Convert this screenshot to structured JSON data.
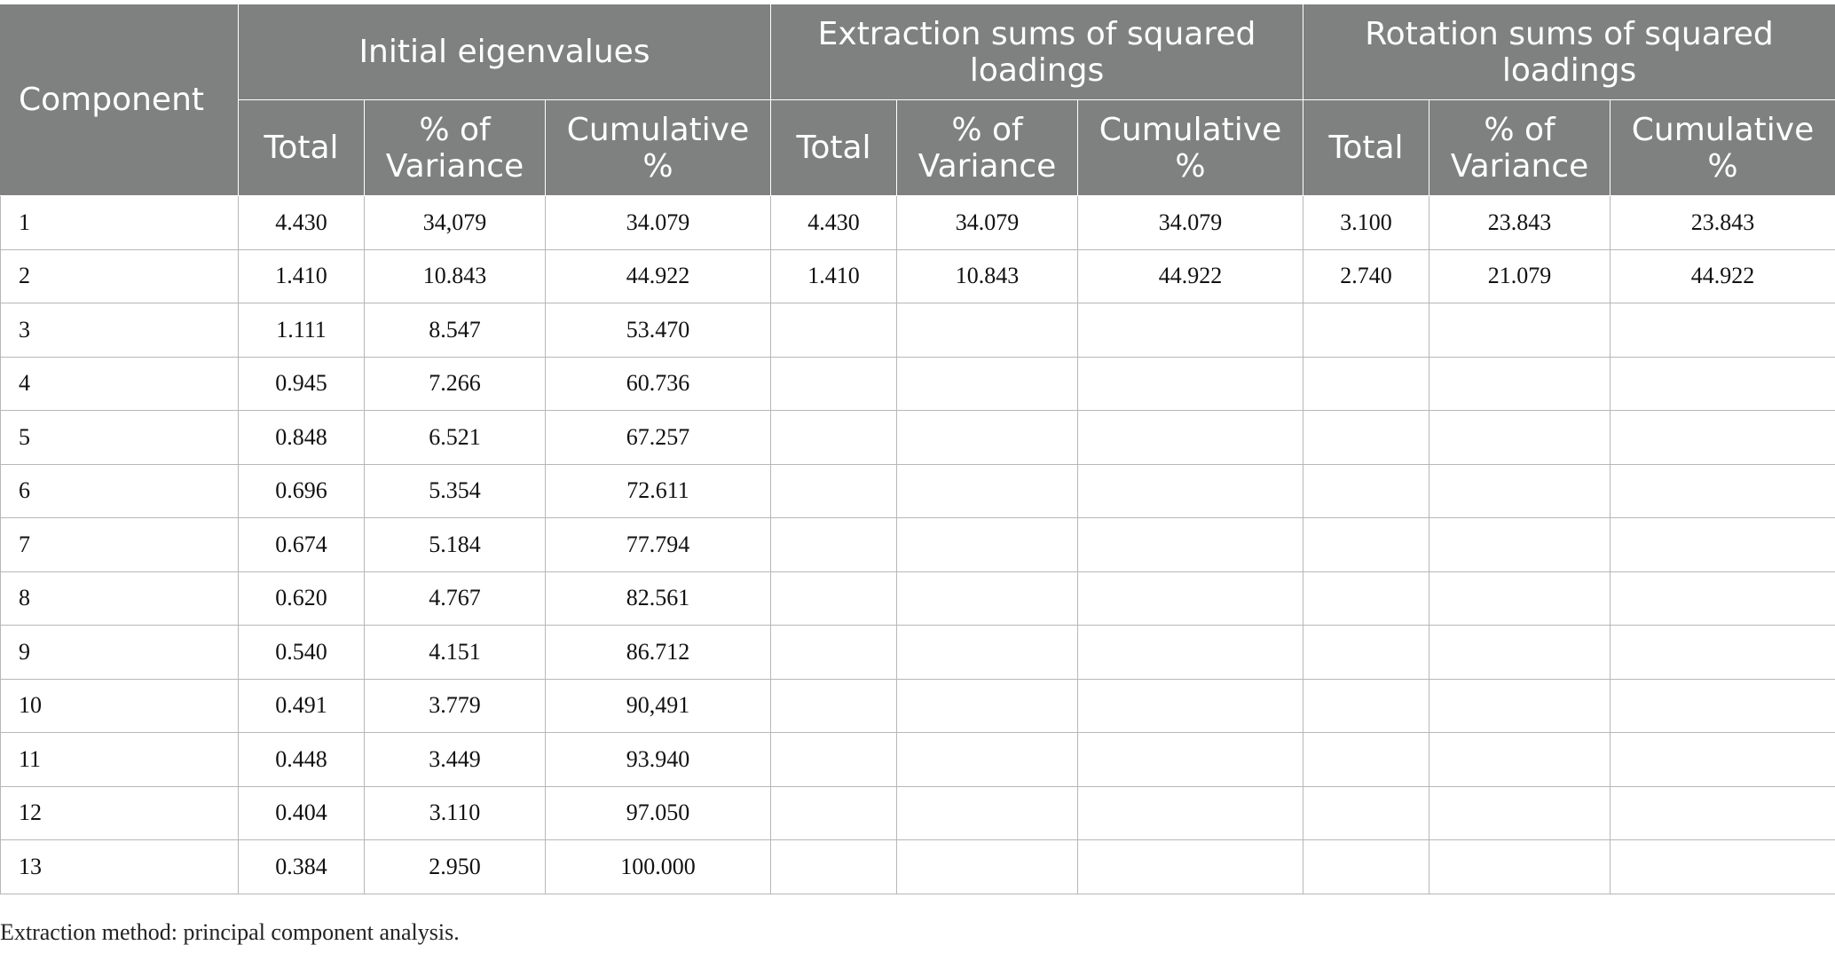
{
  "table": {
    "component_header": "Component",
    "groups": [
      "Initial eigenvalues",
      "Extraction sums of squared loadings",
      "Rotation sums of squared loadings"
    ],
    "subheaders": [
      "Total",
      "% of Variance",
      "Cumulative %"
    ],
    "rows": [
      [
        "1",
        "4.430",
        "34,079",
        "34.079",
        "4.430",
        "34.079",
        "34.079",
        "3.100",
        "23.843",
        "23.843"
      ],
      [
        "2",
        "1.410",
        "10.843",
        "44.922",
        "1.410",
        "10.843",
        "44.922",
        "2.740",
        "21.079",
        "44.922"
      ],
      [
        "3",
        "1.111",
        "8.547",
        "53.470",
        "",
        "",
        "",
        "",
        "",
        ""
      ],
      [
        "4",
        "0.945",
        "7.266",
        "60.736",
        "",
        "",
        "",
        "",
        "",
        ""
      ],
      [
        "5",
        "0.848",
        "6.521",
        "67.257",
        "",
        "",
        "",
        "",
        "",
        ""
      ],
      [
        "6",
        "0.696",
        "5.354",
        "72.611",
        "",
        "",
        "",
        "",
        "",
        ""
      ],
      [
        "7",
        "0.674",
        "5.184",
        "77.794",
        "",
        "",
        "",
        "",
        "",
        ""
      ],
      [
        "8",
        "0.620",
        "4.767",
        "82.561",
        "",
        "",
        "",
        "",
        "",
        ""
      ],
      [
        "9",
        "0.540",
        "4.151",
        "86.712",
        "",
        "",
        "",
        "",
        "",
        ""
      ],
      [
        "10",
        "0.491",
        "3.779",
        "90,491",
        "",
        "",
        "",
        "",
        "",
        ""
      ],
      [
        "11",
        "0.448",
        "3.449",
        "93.940",
        "",
        "",
        "",
        "",
        "",
        ""
      ],
      [
        "12",
        "0.404",
        "3.110",
        "97.050",
        "",
        "",
        "",
        "",
        "",
        ""
      ],
      [
        "13",
        "0.384",
        "2.950",
        "100.000",
        "",
        "",
        "",
        "",
        "",
        ""
      ]
    ]
  },
  "footnote": "Extraction method: principal component analysis.",
  "colors": {
    "header_background": "#7f8180",
    "header_text": "#ffffff",
    "grid_line": "#b7b7b7"
  }
}
